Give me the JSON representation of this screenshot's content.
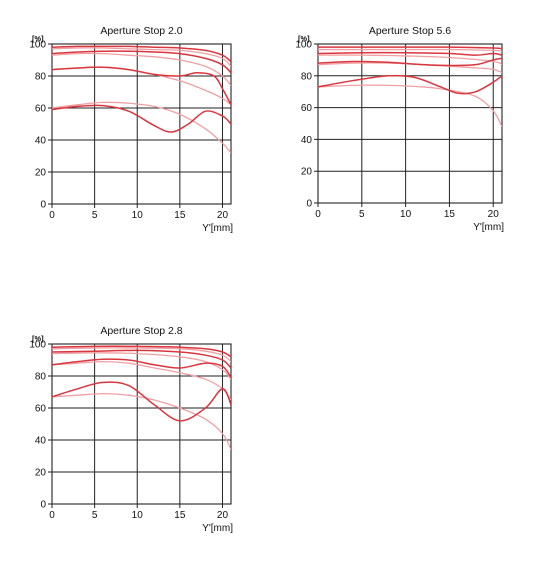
{
  "chart_data": [
    {
      "type": "line",
      "title": "Aperture Stop 2.0",
      "xlabel": "Y'[mm]",
      "ylabel": "[%]",
      "xlim": [
        0,
        21
      ],
      "ylim": [
        0,
        100
      ],
      "xticks": [
        "0",
        "5",
        "10",
        "15",
        "20"
      ],
      "yticks": [
        "0",
        "20",
        "40",
        "60",
        "80",
        "100"
      ],
      "grid": true,
      "series": [
        {
          "style": "solid",
          "color": "#d9363e",
          "x": [
            0,
            3,
            6,
            9,
            12,
            15,
            18,
            20,
            21
          ],
          "y": [
            98,
            98.5,
            98.5,
            98.5,
            98,
            97.5,
            96,
            93,
            89
          ]
        },
        {
          "style": "light",
          "color": "#f0a0a4",
          "x": [
            0,
            3,
            6,
            9,
            12,
            15,
            18,
            20,
            21
          ],
          "y": [
            97,
            97.5,
            97.5,
            97,
            96.5,
            96,
            94,
            91,
            86
          ]
        },
        {
          "style": "solid",
          "color": "#d9363e",
          "x": [
            0,
            3,
            6,
            9,
            12,
            15,
            18,
            20,
            21
          ],
          "y": [
            94,
            95,
            95.5,
            95.5,
            95,
            94,
            91,
            87,
            82
          ]
        },
        {
          "style": "light",
          "color": "#f0a0a4",
          "x": [
            0,
            3,
            6,
            9,
            12,
            15,
            18,
            20,
            21
          ],
          "y": [
            93,
            94,
            94,
            93,
            92,
            90,
            86,
            80,
            74
          ]
        },
        {
          "style": "solid",
          "color": "#d9363e",
          "x": [
            0,
            3,
            6,
            9,
            12,
            15,
            17,
            19,
            20,
            21
          ],
          "y": [
            84,
            85,
            85.5,
            84,
            81,
            80,
            82,
            80,
            72,
            62
          ]
        },
        {
          "style": "light",
          "color": "#f0a0a4",
          "x": [
            0,
            3,
            6,
            9,
            12,
            15,
            18,
            20,
            21
          ],
          "y": [
            84,
            85,
            85.5,
            84,
            81,
            77,
            71,
            66,
            62
          ]
        },
        {
          "style": "solid",
          "color": "#d9363e",
          "x": [
            0,
            3,
            6,
            9,
            12,
            14,
            16,
            18,
            20,
            21
          ],
          "y": [
            59,
            61,
            61.5,
            58,
            49,
            45,
            50,
            58,
            55,
            50
          ]
        },
        {
          "style": "light",
          "color": "#f0a0a4",
          "x": [
            0,
            3,
            6,
            9,
            12,
            15,
            18,
            20,
            21
          ],
          "y": [
            60,
            62,
            63.5,
            63,
            61,
            56,
            47,
            38,
            32
          ]
        }
      ]
    },
    {
      "type": "line",
      "title": "Aperture Stop 5.6",
      "xlabel": "Y'[mm]",
      "ylabel": "[%]",
      "xlim": [
        0,
        21
      ],
      "ylim": [
        0,
        100
      ],
      "xticks": [
        "0",
        "5",
        "10",
        "15",
        "20"
      ],
      "yticks": [
        "0",
        "20",
        "40",
        "60",
        "80",
        "100"
      ],
      "grid": true,
      "series": [
        {
          "style": "solid",
          "color": "#d9363e",
          "x": [
            0,
            5,
            10,
            15,
            20,
            21
          ],
          "y": [
            98,
            98,
            98,
            98,
            97.5,
            97
          ]
        },
        {
          "style": "light",
          "color": "#f0a0a4",
          "x": [
            0,
            5,
            10,
            15,
            20,
            21
          ],
          "y": [
            96.5,
            96.5,
            96.5,
            96.5,
            96,
            95.5
          ]
        },
        {
          "style": "solid",
          "color": "#d9363e",
          "x": [
            0,
            5,
            10,
            15,
            18,
            20,
            21
          ],
          "y": [
            94,
            94.5,
            94.5,
            94,
            93,
            94,
            93
          ]
        },
        {
          "style": "light",
          "color": "#f0a0a4",
          "x": [
            0,
            5,
            10,
            15,
            20,
            21
          ],
          "y": [
            93,
            93,
            92.5,
            91.5,
            89,
            87
          ]
        },
        {
          "style": "solid",
          "color": "#d9363e",
          "x": [
            0,
            4,
            8,
            12,
            15,
            18,
            20,
            21
          ],
          "y": [
            88,
            89,
            88.5,
            87,
            86.5,
            87,
            90,
            91
          ]
        },
        {
          "style": "light",
          "color": "#f0a0a4",
          "x": [
            0,
            4,
            8,
            12,
            15,
            18,
            20,
            21
          ],
          "y": [
            87,
            88,
            88,
            87,
            86,
            85,
            84,
            82
          ]
        },
        {
          "style": "solid",
          "color": "#d9363e",
          "x": [
            0,
            4,
            8,
            11,
            14,
            16,
            18,
            20,
            21
          ],
          "y": [
            73,
            77,
            80,
            79,
            73,
            69,
            70,
            76,
            80
          ]
        },
        {
          "style": "light",
          "color": "#f0a0a4",
          "x": [
            0,
            4,
            8,
            12,
            15,
            18,
            20,
            21
          ],
          "y": [
            73,
            74,
            74,
            73,
            71,
            67,
            58,
            48
          ]
        }
      ]
    },
    {
      "type": "line",
      "title": "Aperture Stop 2.8",
      "xlabel": "Y'[mm]",
      "ylabel": "[%]",
      "xlim": [
        0,
        21
      ],
      "ylim": [
        0,
        100
      ],
      "xticks": [
        "0",
        "5",
        "10",
        "15",
        "20"
      ],
      "yticks": [
        "0",
        "20",
        "40",
        "60",
        "80",
        "100"
      ],
      "grid": true,
      "series": [
        {
          "style": "solid",
          "color": "#d9363e",
          "x": [
            0,
            5,
            10,
            15,
            18,
            20,
            21
          ],
          "y": [
            98,
            98.5,
            98.5,
            98,
            97,
            95,
            92
          ]
        },
        {
          "style": "light",
          "color": "#f0a0a4",
          "x": [
            0,
            5,
            10,
            15,
            18,
            20,
            21
          ],
          "y": [
            97,
            97.5,
            97.5,
            97,
            95.5,
            93,
            89
          ]
        },
        {
          "style": "solid",
          "color": "#d9363e",
          "x": [
            0,
            5,
            10,
            15,
            18,
            20,
            21
          ],
          "y": [
            95,
            95.5,
            96,
            95,
            93,
            90,
            85
          ]
        },
        {
          "style": "light",
          "color": "#f0a0a4",
          "x": [
            0,
            5,
            10,
            15,
            18,
            20,
            21
          ],
          "y": [
            94,
            94.5,
            94,
            92,
            89,
            84,
            78
          ]
        },
        {
          "style": "solid",
          "color": "#d9363e",
          "x": [
            0,
            3,
            6,
            9,
            12,
            15,
            18,
            20,
            21
          ],
          "y": [
            87,
            89,
            90.5,
            90,
            87,
            85,
            88,
            86,
            79
          ]
        },
        {
          "style": "light",
          "color": "#f0a0a4",
          "x": [
            0,
            3,
            6,
            9,
            12,
            15,
            18,
            20,
            21
          ],
          "y": [
            87,
            88,
            89,
            88,
            85,
            82,
            78,
            72,
            65
          ]
        },
        {
          "style": "solid",
          "color": "#d9363e",
          "x": [
            0,
            3,
            6,
            9,
            12,
            15,
            18,
            20,
            21
          ],
          "y": [
            67,
            72,
            76,
            74,
            62,
            52,
            60,
            72,
            62
          ]
        },
        {
          "style": "light",
          "color": "#f0a0a4",
          "x": [
            0,
            3,
            6,
            9,
            12,
            15,
            18,
            20,
            21
          ],
          "y": [
            67,
            68,
            69,
            68,
            65,
            60,
            53,
            44,
            34
          ]
        }
      ]
    }
  ]
}
